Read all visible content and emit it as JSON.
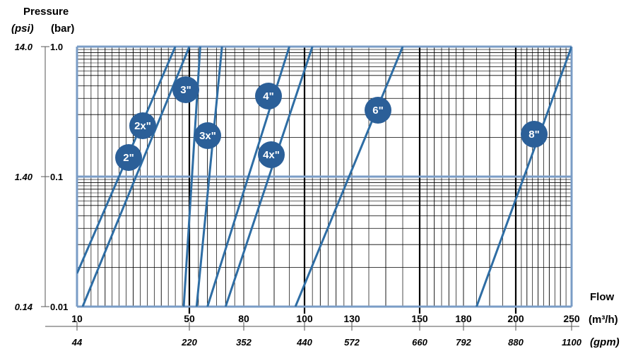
{
  "chart_data": {
    "type": "line",
    "title": "",
    "y_title": "Pressure",
    "y_unit_left": "(psi)",
    "y_unit_right": "(bar)",
    "x_title": "Flow",
    "x_unit_top": "(m³/h)",
    "x_unit_bottom": "(gpm)",
    "x_scale": "mixed-linear",
    "y_scale": "log",
    "ylim_bar": [
      0.01,
      1.0
    ],
    "x_ticks_m3h": [
      "10",
      "50",
      "80",
      "100",
      "130",
      "150",
      "180",
      "200",
      "250"
    ],
    "x_ticks_gpm": [
      "44",
      "220",
      "352",
      "440",
      "572",
      "660",
      "792",
      "880",
      "1100"
    ],
    "y_ticks_bar": [
      "1.0",
      "0.1",
      "0.01"
    ],
    "y_ticks_psi": [
      "14.0",
      "1.40",
      "0.14"
    ],
    "series": [
      {
        "name": "2\"",
        "x": [
          10,
          45
        ],
        "y": [
          0.018,
          1.0
        ]
      },
      {
        "name": "2x\"",
        "x": [
          12,
          50
        ],
        "y": [
          0.01,
          1.0
        ]
      },
      {
        "name": "3\"",
        "x": [
          48,
          56
        ],
        "y": [
          0.01,
          1.0
        ]
      },
      {
        "name": "3x\"",
        "x": [
          54,
          68
        ],
        "y": [
          0.01,
          1.0
        ]
      },
      {
        "name": "4\"",
        "x": [
          60,
          95
        ],
        "y": [
          0.01,
          1.0
        ]
      },
      {
        "name": "4x\"",
        "x": [
          70,
          105
        ],
        "y": [
          0.01,
          1.0
        ]
      },
      {
        "name": "6\"",
        "x": [
          97,
          145
        ],
        "y": [
          0.01,
          1.0
        ]
      },
      {
        "name": "8\"",
        "x": [
          185,
          250
        ],
        "y": [
          0.01,
          1.0
        ]
      }
    ],
    "grid": true,
    "colors": {
      "line": "#2e6da4",
      "badge": "#2b5f98",
      "major_h": "#7a9cc6",
      "grid": "#000000"
    }
  }
}
